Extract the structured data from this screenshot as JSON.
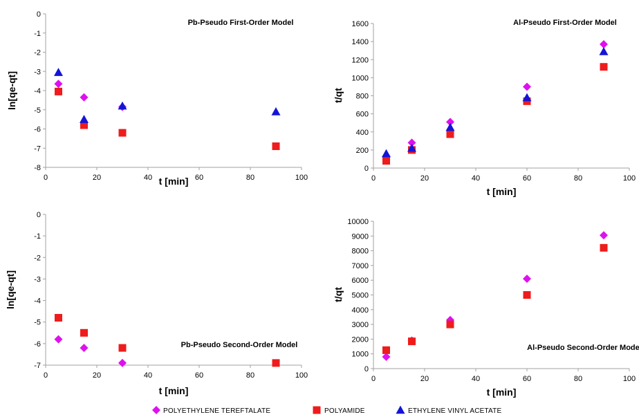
{
  "colors": {
    "polyethylene_tereftalate": "#dd11ee",
    "polyamide": "#ee1c1c",
    "ethylene_vinyl_acetate": "#1414d8",
    "axis": "#a0a0a0"
  },
  "legend": {
    "position": "bottom-center",
    "items": [
      {
        "key": "pet",
        "label": "POLYETHYLENE TEREFTALATE",
        "marker": "diamond",
        "color": "#dd11ee"
      },
      {
        "key": "pa",
        "label": "POLYAMIDE",
        "marker": "square",
        "color": "#ee1c1c"
      },
      {
        "key": "eva",
        "label": "ETHYLENE VINYL ACETATE",
        "marker": "triangle",
        "color": "#1414d8"
      }
    ]
  },
  "chart_data": [
    {
      "type": "scatter",
      "title": "Pb-Pseudo First-Order Model",
      "xlabel": "t [min]",
      "ylabel": "ln[qe-qt]",
      "xlim": [
        0,
        100
      ],
      "xticks": [
        0,
        20,
        40,
        60,
        80,
        100
      ],
      "ylim": [
        -8,
        0
      ],
      "yticks": [
        0,
        -1,
        -2,
        -3,
        -4,
        -5,
        -6,
        -7,
        -8
      ],
      "grid": false,
      "series": [
        {
          "name": "POLYETHYLENE TEREFTALATE",
          "marker": "diamond",
          "color": "#dd11ee",
          "points": [
            [
              5,
              -3.65
            ],
            [
              15,
              -4.35
            ],
            [
              30,
              -4.85
            ]
          ]
        },
        {
          "name": "POLYAMIDE",
          "marker": "square",
          "color": "#ee1c1c",
          "points": [
            [
              5,
              -4.05
            ],
            [
              15,
              -5.8
            ],
            [
              30,
              -6.2
            ],
            [
              90,
              -6.9
            ]
          ]
        },
        {
          "name": "ETHYLENE VINYL ACETATE",
          "marker": "triangle",
          "color": "#1414d8",
          "points": [
            [
              5,
              -3.05
            ],
            [
              15,
              -5.5
            ],
            [
              30,
              -4.8
            ],
            [
              90,
              -5.1
            ]
          ]
        }
      ]
    },
    {
      "type": "scatter",
      "title": "Al-Pseudo First-Order Model",
      "xlabel": "t [min]",
      "ylabel": "t/qt",
      "xlim": [
        0,
        100
      ],
      "xticks": [
        0,
        20,
        40,
        60,
        80,
        100
      ],
      "ylim": [
        0,
        1600
      ],
      "yticks": [
        0,
        200,
        400,
        600,
        800,
        1000,
        1200,
        1400,
        1600
      ],
      "grid": false,
      "series": [
        {
          "name": "POLYETHYLENE TEREFTALATE",
          "marker": "diamond",
          "color": "#dd11ee",
          "points": [
            [
              5,
              120
            ],
            [
              15,
              280
            ],
            [
              30,
              510
            ],
            [
              60,
              900
            ],
            [
              90,
              1370
            ]
          ]
        },
        {
          "name": "POLYAMIDE",
          "marker": "square",
          "color": "#ee1c1c",
          "points": [
            [
              5,
              80
            ],
            [
              15,
              200
            ],
            [
              30,
              375
            ],
            [
              60,
              740
            ],
            [
              90,
              1120
            ]
          ]
        },
        {
          "name": "ETHYLENE VINYL ACETATE",
          "marker": "triangle",
          "color": "#1414d8",
          "points": [
            [
              5,
              160
            ],
            [
              15,
              220
            ],
            [
              30,
              450
            ],
            [
              60,
              780
            ],
            [
              90,
              1290
            ]
          ]
        }
      ]
    },
    {
      "type": "scatter",
      "title": "Pb-Pseudo Second-Order Model",
      "xlabel": "t [min]",
      "ylabel": "ln[qe-qt]",
      "xlim": [
        0,
        100
      ],
      "xticks": [
        0,
        20,
        40,
        60,
        80,
        100
      ],
      "ylim": [
        -7,
        0
      ],
      "yticks": [
        0,
        -1,
        -2,
        -3,
        -4,
        -5,
        -6,
        -7
      ],
      "grid": false,
      "series": [
        {
          "name": "POLYETHYLENE TEREFTALATE",
          "marker": "diamond",
          "color": "#dd11ee",
          "points": [
            [
              5,
              -5.8
            ],
            [
              15,
              -6.2
            ],
            [
              30,
              -6.9
            ]
          ]
        },
        {
          "name": "POLYAMIDE",
          "marker": "square",
          "color": "#ee1c1c",
          "points": [
            [
              5,
              -4.8
            ],
            [
              15,
              -5.5
            ],
            [
              30,
              -6.2
            ],
            [
              90,
              -6.9
            ]
          ]
        }
      ]
    },
    {
      "type": "scatter",
      "title": "Al-Pseudo Second-Order Model",
      "xlabel": "t [min]",
      "ylabel": "t/qt",
      "xlim": [
        0,
        100
      ],
      "xticks": [
        0,
        20,
        40,
        60,
        80,
        100
      ],
      "ylim": [
        0,
        10000
      ],
      "yticks": [
        0,
        1000,
        2000,
        3000,
        4000,
        5000,
        6000,
        7000,
        8000,
        9000,
        10000
      ],
      "grid": false,
      "series": [
        {
          "name": "POLYETHYLENE TEREFTALATE",
          "marker": "diamond",
          "color": "#dd11ee",
          "points": [
            [
              5,
              800
            ],
            [
              15,
              1900
            ],
            [
              30,
              3300
            ],
            [
              60,
              6100
            ],
            [
              90,
              9050
            ]
          ]
        },
        {
          "name": "POLYAMIDE",
          "marker": "square",
          "color": "#ee1c1c",
          "points": [
            [
              5,
              1250
            ],
            [
              15,
              1850
            ],
            [
              30,
              3000
            ],
            [
              60,
              5000
            ],
            [
              90,
              8200
            ]
          ]
        }
      ]
    }
  ]
}
